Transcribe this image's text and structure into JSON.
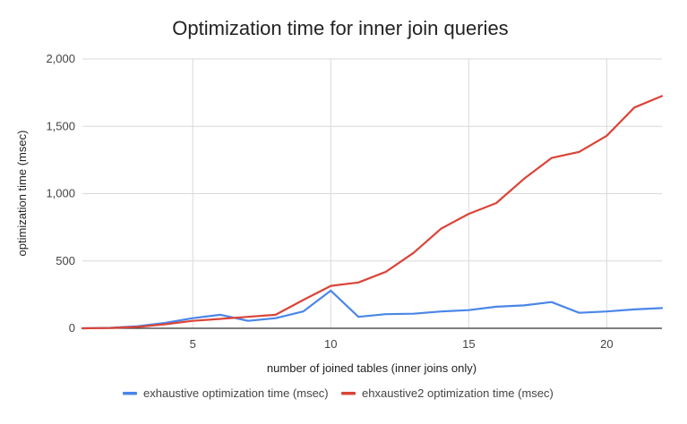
{
  "chart_data": {
    "type": "line",
    "title": "Optimization time for inner join queries",
    "xlabel": "number of joined tables (inner joins only)",
    "ylabel": "optimization time (msec)",
    "xlim": [
      1,
      22
    ],
    "ylim": [
      0,
      2000
    ],
    "x_ticks": [
      5,
      10,
      15,
      20
    ],
    "y_ticks": [
      0,
      500,
      1000,
      1500,
      2000
    ],
    "y_tick_labels": [
      "0",
      "500",
      "1,000",
      "1,500",
      "2,000"
    ],
    "grid": true,
    "legend_position": "bottom",
    "x": [
      1,
      2,
      3,
      4,
      5,
      6,
      7,
      8,
      9,
      10,
      11,
      12,
      13,
      14,
      15,
      16,
      17,
      18,
      19,
      20,
      21,
      22
    ],
    "series": [
      {
        "name": "exhaustive optimization time (msec)",
        "color": "#4a86e8",
        "values": [
          0,
          3,
          15,
          40,
          75,
          100,
          55,
          75,
          125,
          280,
          85,
          105,
          108,
          125,
          135,
          160,
          170,
          195,
          115,
          125,
          140,
          150
        ]
      },
      {
        "name": "ehxaustive2 optimization time (msec)",
        "color": "#db4437",
        "values": [
          0,
          2,
          10,
          30,
          55,
          70,
          85,
          100,
          210,
          315,
          340,
          420,
          560,
          740,
          850,
          930,
          1110,
          1265,
          1310,
          1430,
          1640,
          1725
        ]
      }
    ]
  }
}
